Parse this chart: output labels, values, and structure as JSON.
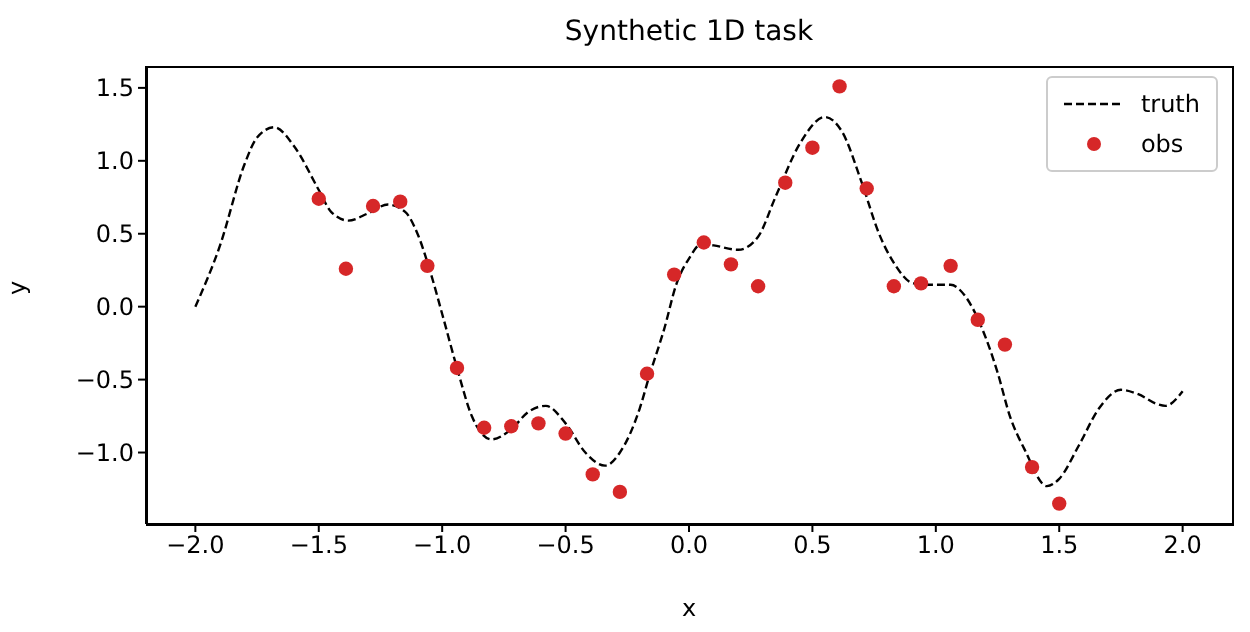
{
  "chart_data": {
    "type": "line",
    "title": "Synthetic 1D task",
    "xlabel": "x",
    "ylabel": "y",
    "xlim": [
      -2.2,
      2.2
    ],
    "xticks": [
      {
        "value": -2,
        "label": "−2.0"
      },
      {
        "value": -1.5,
        "label": "−1.5"
      },
      {
        "value": -1,
        "label": "−1.0"
      },
      {
        "value": -0.5,
        "label": "−0.5"
      },
      {
        "value": 0,
        "label": "0.0"
      },
      {
        "value": 0.5,
        "label": "0.5"
      },
      {
        "value": 1,
        "label": "1.0"
      },
      {
        "value": 1.5,
        "label": "1.5"
      },
      {
        "value": 2,
        "label": "2.0"
      }
    ],
    "ylim": [
      -1.49,
      1.65
    ],
    "yticks": [
      {
        "value": -1,
        "label": "−1.0"
      },
      {
        "value": -0.5,
        "label": "−0.5"
      },
      {
        "value": 0,
        "label": "0.0"
      },
      {
        "value": 0.5,
        "label": "0.5"
      },
      {
        "value": 1,
        "label": "1.0"
      },
      {
        "value": 1.5,
        "label": "1.5"
      }
    ],
    "grid": false,
    "legend": "top right",
    "series": [
      {
        "name": "truth",
        "color": "#000000",
        "line_style": "dashed",
        "marker": "none",
        "x": [
          -2.0,
          -1.9,
          -1.8,
          -1.75,
          -1.68,
          -1.6,
          -1.5,
          -1.45,
          -1.38,
          -1.3,
          -1.22,
          -1.15,
          -1.1,
          -1.05,
          -1.0,
          -0.94,
          -0.88,
          -0.8,
          -0.72,
          -0.65,
          -0.58,
          -0.5,
          -0.42,
          -0.34,
          -0.28,
          -0.2,
          -0.16,
          -0.1,
          -0.05,
          0.0,
          0.05,
          0.1,
          0.2,
          0.28,
          0.35,
          0.45,
          0.55,
          0.62,
          0.7,
          0.77,
          0.83,
          0.91,
          1.0,
          1.06,
          1.12,
          1.18,
          1.25,
          1.3,
          1.36,
          1.45,
          1.5,
          1.58,
          1.66,
          1.75,
          1.82,
          1.9,
          1.93,
          2.0
        ],
        "values": [
          0.0,
          0.42,
          0.98,
          1.16,
          1.23,
          1.1,
          0.8,
          0.65,
          0.59,
          0.64,
          0.7,
          0.65,
          0.5,
          0.25,
          -0.05,
          -0.42,
          -0.75,
          -0.91,
          -0.84,
          -0.72,
          -0.68,
          -0.8,
          -1.0,
          -1.09,
          -1.0,
          -0.7,
          -0.47,
          -0.15,
          0.16,
          0.33,
          0.43,
          0.42,
          0.39,
          0.48,
          0.75,
          1.12,
          1.3,
          1.2,
          0.85,
          0.5,
          0.3,
          0.16,
          0.15,
          0.15,
          0.07,
          -0.12,
          -0.45,
          -0.75,
          -0.98,
          -1.23,
          -1.18,
          -0.95,
          -0.7,
          -0.57,
          -0.6,
          -0.67,
          -0.68,
          -0.58
        ]
      },
      {
        "name": "obs",
        "type": "scatter",
        "color": "#d62728",
        "marker": "circle",
        "x": [
          -1.5,
          -1.39,
          -1.28,
          -1.17,
          -1.06,
          -0.94,
          -0.83,
          -0.72,
          -0.61,
          -0.5,
          -0.39,
          -0.28,
          -0.17,
          -0.06,
          0.06,
          0.17,
          0.28,
          0.39,
          0.5,
          0.61,
          0.72,
          0.83,
          0.94,
          1.06,
          1.17,
          1.28,
          1.39,
          1.5
        ],
        "values": [
          0.74,
          0.26,
          0.69,
          0.72,
          0.28,
          -0.42,
          -0.83,
          -0.82,
          -0.8,
          -0.87,
          -1.15,
          -1.27,
          -0.46,
          0.22,
          0.44,
          0.29,
          0.14,
          0.85,
          1.09,
          1.51,
          0.81,
          0.14,
          0.16,
          0.28,
          -0.09,
          -0.26,
          -1.1,
          -1.35
        ]
      }
    ]
  }
}
